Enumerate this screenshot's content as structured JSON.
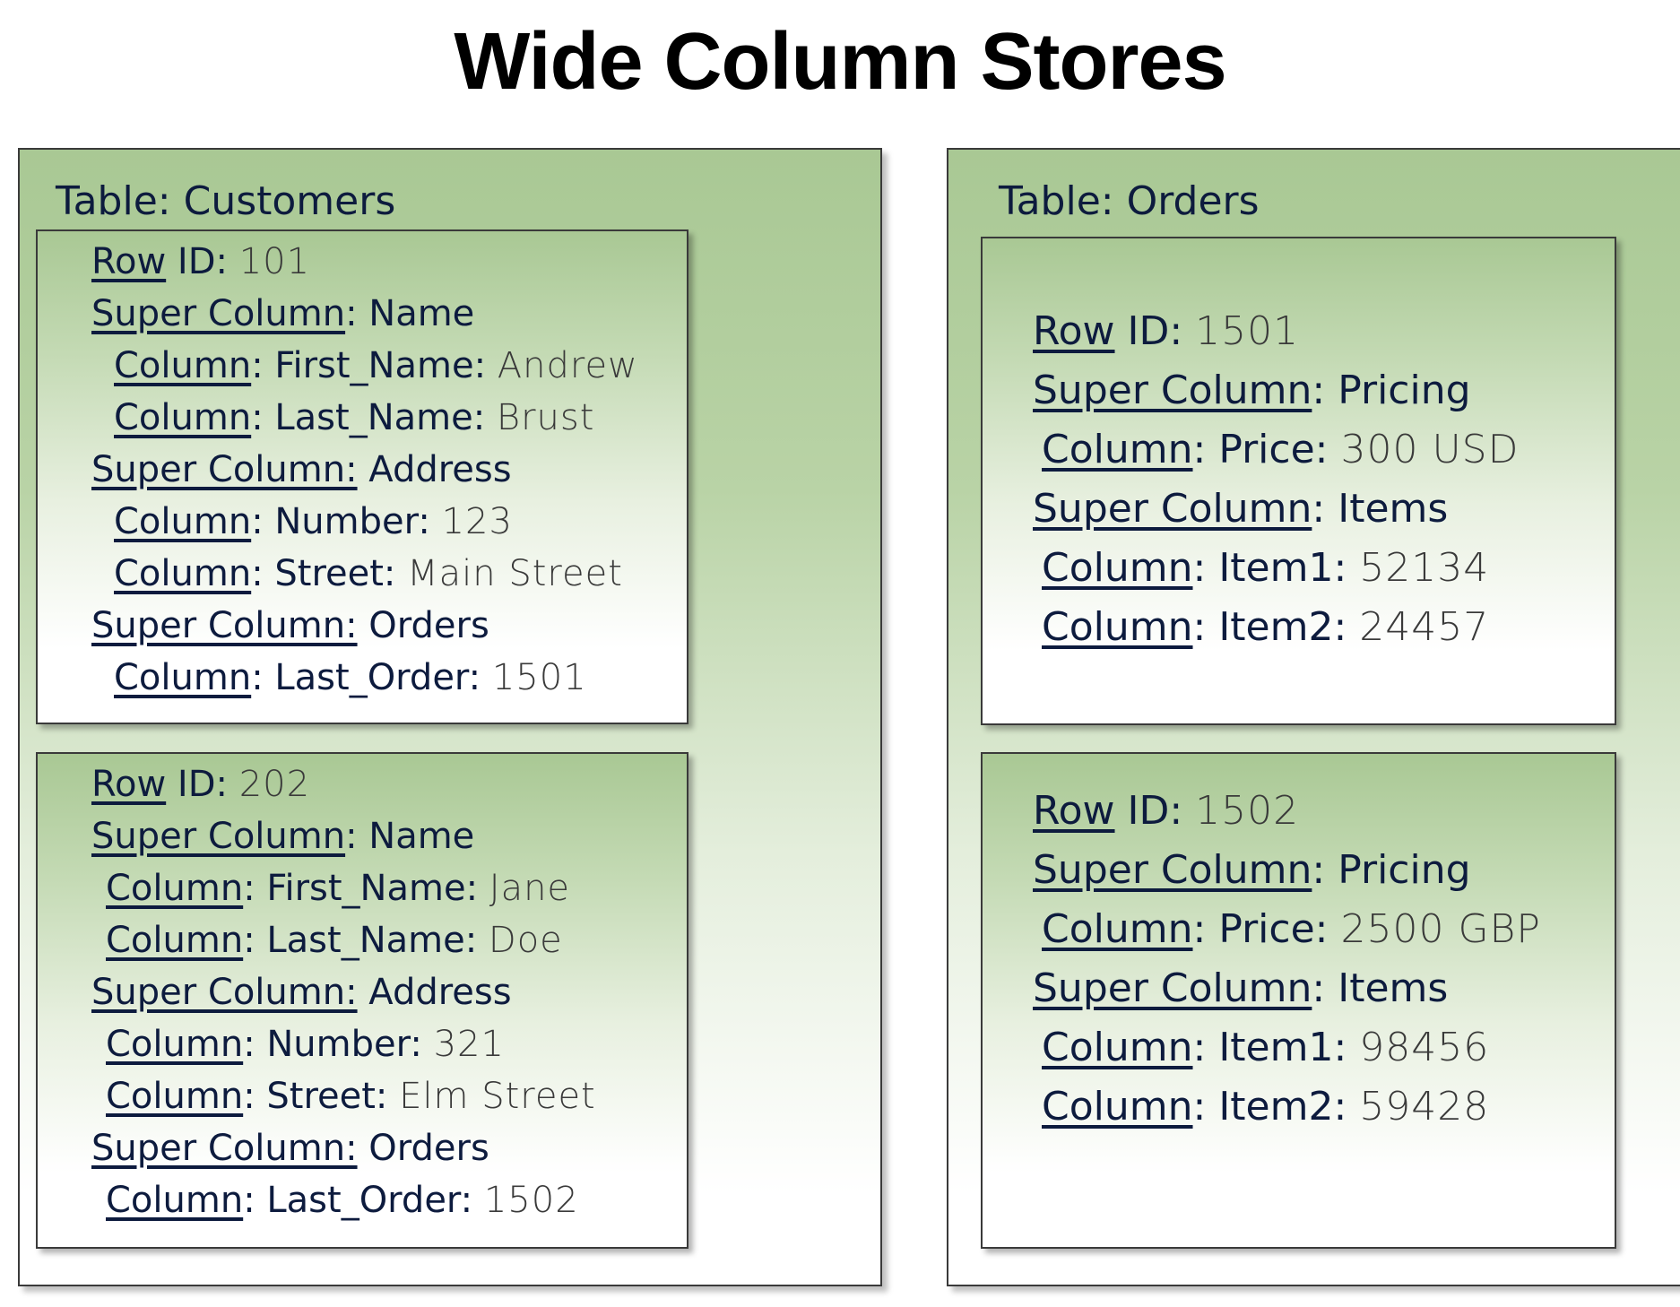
{
  "title": "Wide Column Stores",
  "tables": [
    {
      "label": "Table: Customers",
      "rows": [
        {
          "lines": [
            {
              "kw": "Row",
              "rest": " ID: ",
              "val": "101"
            },
            {
              "kw": "Super Column",
              "rest": ": Name",
              "val": ""
            },
            {
              "kw": "Column",
              "rest": ": First_Name: ",
              "val": "Andrew"
            },
            {
              "kw": "Column",
              "rest": ": Last_Name: ",
              "val": "Brust"
            },
            {
              "kw": "Super Column:",
              "rest": " Address",
              "val": ""
            },
            {
              "kw": "Column",
              "rest": ": Number: ",
              "val": "123"
            },
            {
              "kw": "Column",
              "rest": ": Street: ",
              "val": "Main Street"
            },
            {
              "kw": "Super Column:",
              "rest": " Orders",
              "val": ""
            },
            {
              "kw": "Column",
              "rest": ": Last_Order: ",
              "val": "1501"
            }
          ]
        },
        {
          "lines": [
            {
              "kw": "Row",
              "rest": " ID: ",
              "val": "202"
            },
            {
              "kw": "Super Column",
              "rest": ": Name",
              "val": ""
            },
            {
              "kw": "Column",
              "rest": ": First_Name: ",
              "val": "Jane"
            },
            {
              "kw": "Column",
              "rest": ": Last_Name: ",
              "val": "Doe"
            },
            {
              "kw": "Super Column:",
              "rest": " Address",
              "val": ""
            },
            {
              "kw": "Column",
              "rest": ": Number: ",
              "val": "321"
            },
            {
              "kw": "Column",
              "rest": ": Street: ",
              "val": "Elm Street"
            },
            {
              "kw": "Super Column:",
              "rest": " Orders",
              "val": ""
            },
            {
              "kw": "Column",
              "rest": ": Last_Order: ",
              "val": "1502"
            }
          ]
        }
      ]
    },
    {
      "label": "Table: Orders",
      "rows": [
        {
          "lines": [
            {
              "kw": "Row",
              "rest": " ID: ",
              "val": "1501"
            },
            {
              "kw": "Super Column",
              "rest": ": Pricing",
              "val": ""
            },
            {
              "kw": "Column",
              "rest": ": Price: ",
              "val": "300 USD"
            },
            {
              "kw": "Super Column",
              "rest": ": Items",
              "val": ""
            },
            {
              "kw": "Column",
              "rest": ": Item1: ",
              "val": "52134"
            },
            {
              "kw": "Column",
              "rest": ": Item2: ",
              "val": "24457"
            }
          ]
        },
        {
          "lines": [
            {
              "kw": "Row",
              "rest": " ID: ",
              "val": "1502"
            },
            {
              "kw": "Super Column",
              "rest": ": Pricing",
              "val": ""
            },
            {
              "kw": "Column",
              "rest": ": Price: ",
              "val": "2500 GBP"
            },
            {
              "kw": "Super Column",
              "rest": ": Items",
              "val": ""
            },
            {
              "kw": "Column",
              "rest": ": Item1: ",
              "val": "98456"
            },
            {
              "kw": "Column",
              "rest": ": Item2: ",
              "val": "59428"
            }
          ]
        }
      ]
    }
  ]
}
